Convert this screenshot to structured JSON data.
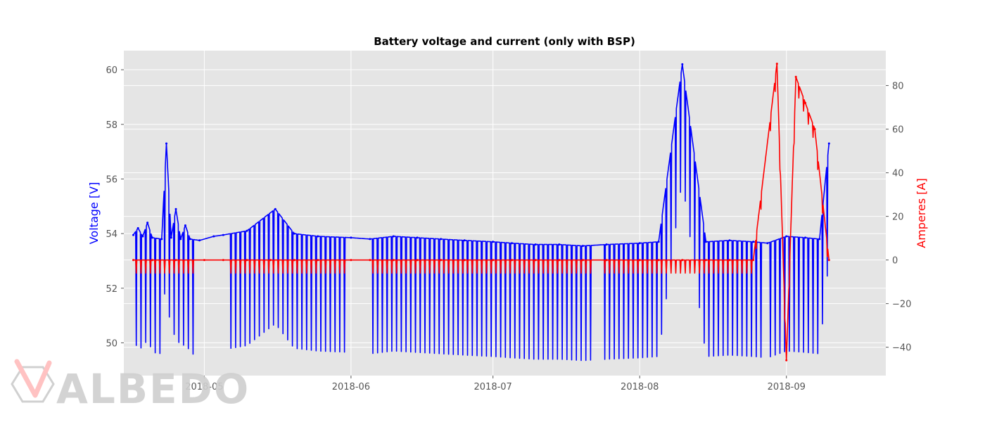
{
  "chart_data": {
    "type": "line",
    "title": "Battery voltage and current (only with BSP)",
    "ylabel_left": "Voltage [V]",
    "ylabel_right": "Amperes [A]",
    "xlim": [
      "2018-04-14",
      "2018-09-22"
    ],
    "ylim_left": [
      48.8,
      60.7
    ],
    "ylim_right": [
      -53,
      96
    ],
    "x_ticks": [
      "2018-05",
      "2018-06",
      "2018-07",
      "2018-08",
      "2018-09"
    ],
    "y_ticks_left": [
      50,
      52,
      54,
      56,
      58,
      60
    ],
    "y_ticks_right": [
      -40,
      -20,
      0,
      20,
      40,
      60,
      80
    ],
    "grid": true,
    "colors": {
      "voltage": "#0000ff",
      "current": "#ff0000",
      "axes_bg": "#e5e5e5",
      "grid": "#ffffff"
    },
    "series": [
      {
        "axis": "left",
        "color": "#0000ff",
        "x": [
          "2018-04-16",
          "2018-04-17",
          "2018-04-18",
          "2018-04-19",
          "2018-04-20",
          "2018-04-22",
          "2018-04-23",
          "2018-04-24",
          "2018-04-25",
          "2018-04-26",
          "2018-04-27",
          "2018-04-28",
          "2018-04-30",
          "2018-05-03",
          "2018-05-05",
          "2018-05-10",
          "2018-05-16",
          "2018-05-20",
          "2018-05-25",
          "2018-06-01",
          "2018-06-05",
          "2018-06-10",
          "2018-06-15",
          "2018-06-20",
          "2018-06-25",
          "2018-07-01",
          "2018-07-05",
          "2018-07-10",
          "2018-07-15",
          "2018-07-20",
          "2018-07-25",
          "2018-08-01",
          "2018-08-05",
          "2018-08-10",
          "2018-08-15",
          "2018-08-20",
          "2018-08-25",
          "2018-08-28",
          "2018-09-01",
          "2018-09-05",
          "2018-09-08",
          "2018-09-10"
        ],
        "values": [
          53.95,
          54.2,
          53.9,
          54.4,
          53.85,
          53.8,
          57.3,
          53.85,
          54.9,
          53.8,
          54.3,
          53.8,
          53.75,
          53.9,
          53.95,
          54.1,
          54.9,
          54.0,
          53.9,
          53.85,
          53.8,
          53.9,
          53.85,
          53.8,
          53.75,
          53.7,
          53.65,
          53.6,
          53.6,
          53.55,
          53.6,
          53.65,
          53.7,
          60.2,
          53.7,
          53.75,
          53.7,
          53.65,
          53.9,
          53.85,
          53.8,
          57.3
        ]
      },
      {
        "axis": "right",
        "color": "#ff0000",
        "x": [
          "2018-04-16",
          "2018-04-20",
          "2018-04-25",
          "2018-05-01",
          "2018-05-05",
          "2018-05-10",
          "2018-05-15",
          "2018-05-20",
          "2018-05-25",
          "2018-06-01",
          "2018-06-05",
          "2018-06-10",
          "2018-06-15",
          "2018-06-20",
          "2018-06-25",
          "2018-07-01",
          "2018-07-05",
          "2018-07-10",
          "2018-07-15",
          "2018-07-20",
          "2018-07-25",
          "2018-08-01",
          "2018-08-05",
          "2018-08-10",
          "2018-08-15",
          "2018-08-20",
          "2018-08-25",
          "2018-08-30",
          "2018-09-01",
          "2018-09-03",
          "2018-09-05",
          "2018-09-07",
          "2018-09-10"
        ],
        "values": [
          0,
          0,
          0,
          0,
          0,
          0,
          0,
          0,
          0,
          0,
          0,
          0,
          0,
          0,
          0,
          0,
          0,
          0,
          0,
          0,
          0,
          0,
          0,
          0,
          0,
          0,
          0,
          90,
          -46,
          84,
          72,
          60,
          0
        ]
      }
    ]
  },
  "watermark": {
    "brand_text": "ALBEDO"
  }
}
